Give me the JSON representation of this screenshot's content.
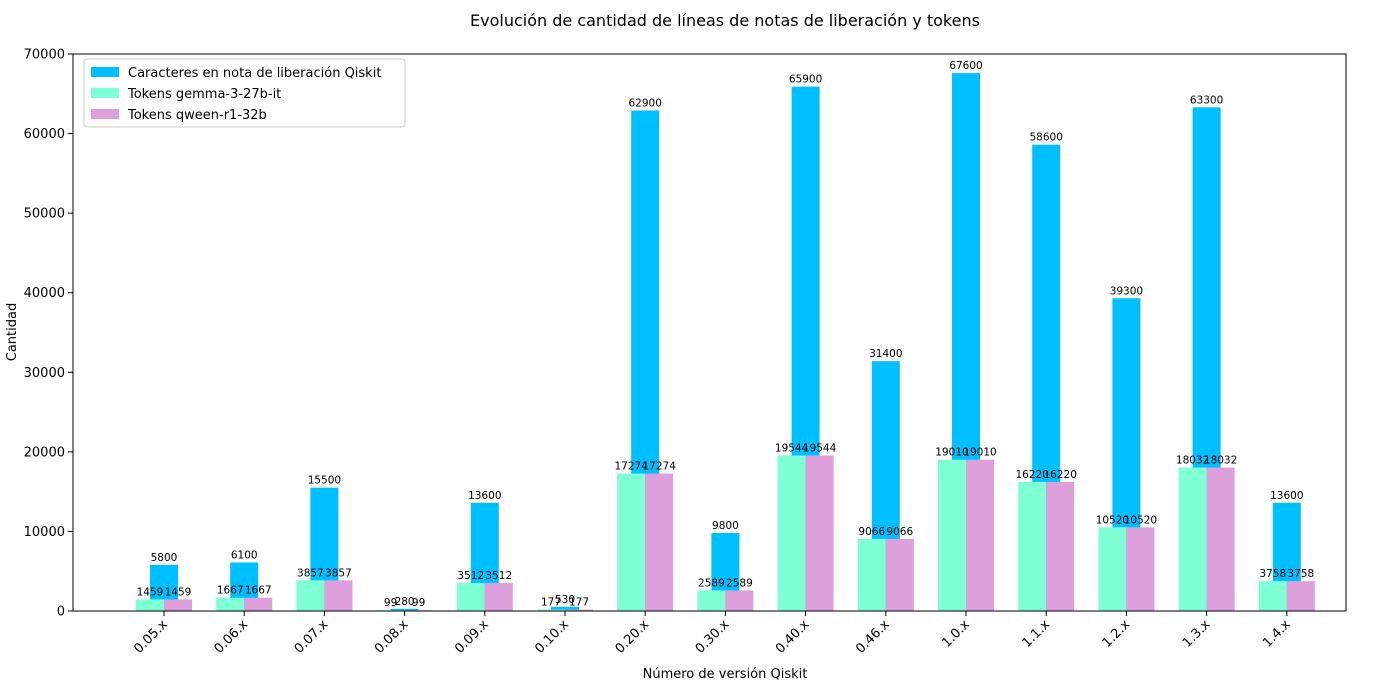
{
  "chart_data": {
    "type": "bar",
    "title": "Evolución de cantidad de líneas de notas de liberación y tokens",
    "xlabel": "Número de versión Qiskit",
    "ylabel": "Cantidad",
    "ylim": [
      0,
      70000
    ],
    "yticks": [
      0,
      10000,
      20000,
      30000,
      40000,
      50000,
      60000,
      70000
    ],
    "legend_position": "top-left",
    "grid": false,
    "categories": [
      "0.05.x",
      "0.06.x",
      "0.07.x",
      "0.08.x",
      "0.09.x",
      "0.10.x",
      "0.20.x",
      "0.30.x",
      "0.40.x",
      "0.46.x",
      "1.0.x",
      "1.1.x",
      "1.2.x",
      "1.3.x",
      "1.4.x"
    ],
    "series": [
      {
        "name": "Caracteres en nota de liberación Qiskit",
        "color": "#00bfff",
        "values": [
          5800,
          6100,
          15500,
          280,
          13600,
          530,
          62900,
          9800,
          65900,
          31400,
          67600,
          58600,
          39300,
          63300,
          13600
        ]
      },
      {
        "name": "Tokens gemma-3-27b-it",
        "color": "#7fffd4",
        "values": [
          1459,
          1667,
          3857,
          99,
          3512,
          177,
          17274,
          2589,
          19544,
          9066,
          19010,
          16220,
          10520,
          18032,
          3758
        ]
      },
      {
        "name": "Tokens qween-r1-32b",
        "color": "#dda0dd",
        "values": [
          1459,
          1667,
          3857,
          99,
          3512,
          177,
          17274,
          2589,
          19544,
          9066,
          19010,
          16220,
          10520,
          18032,
          3758
        ]
      }
    ]
  }
}
